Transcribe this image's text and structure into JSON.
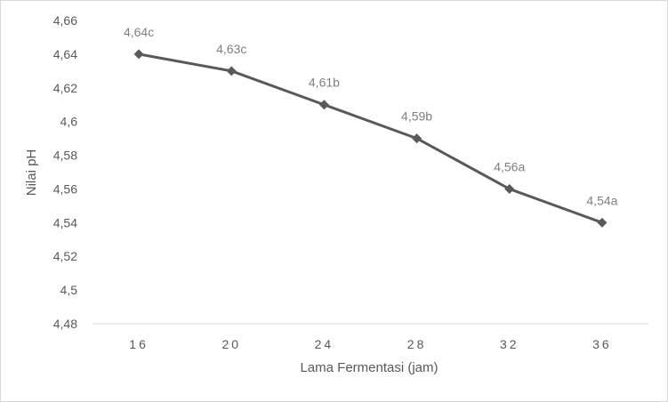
{
  "chart_data": {
    "type": "line",
    "x": [
      "16",
      "20",
      "24",
      "28",
      "32",
      "36"
    ],
    "series": [
      {
        "values": [
          4.64,
          4.63,
          4.61,
          4.59,
          4.56,
          4.54
        ]
      }
    ],
    "data_labels": [
      "4,64c",
      "4,63c",
      "4,61b",
      "4,59b",
      "4,56a",
      "4,54a"
    ],
    "y_tick_labels": [
      "4,48",
      "4,5",
      "4,52",
      "4,54",
      "4,56",
      "4,58",
      "4,6",
      "4,62",
      "4,64",
      "4,66"
    ],
    "ylim": [
      4.48,
      4.66
    ],
    "xlabel": "Lama Fermentasi (jam)",
    "ylabel": "Nilai pH",
    "grid": false,
    "legend": "none",
    "colors": {
      "line": "#595959",
      "marker": "#595959",
      "axis": "#d9d9d9"
    }
  }
}
